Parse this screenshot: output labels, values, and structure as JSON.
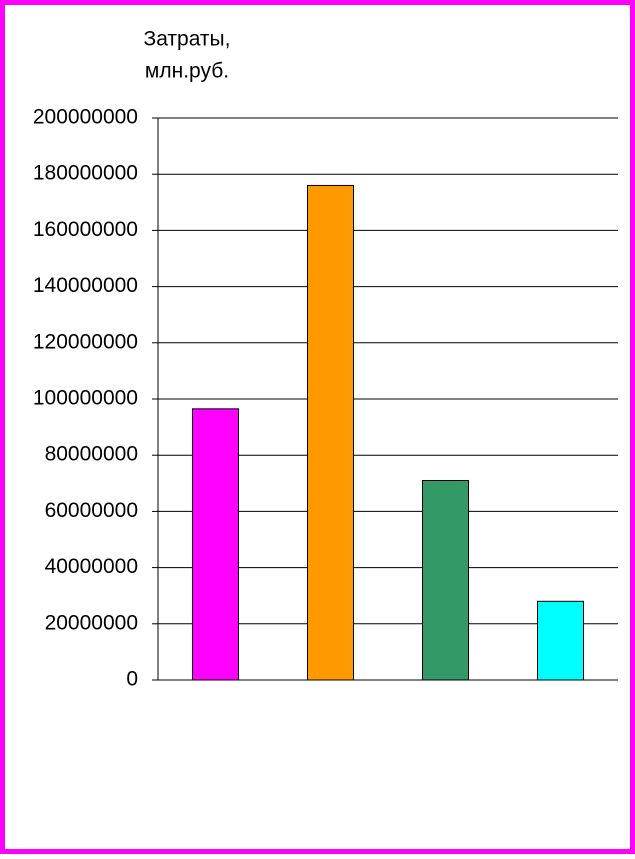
{
  "chart_data": {
    "type": "bar",
    "title": [
      "Затраты,",
      "млн.руб."
    ],
    "categories": [
      null,
      null,
      null,
      null
    ],
    "values": [
      96500000,
      176000000,
      71000000,
      28000000
    ],
    "colors": [
      "#ff00ff",
      "#ff9900",
      "#339966",
      "#00ffff"
    ],
    "ylim": [
      0,
      200000000
    ],
    "yticks": [
      0,
      20000000,
      40000000,
      60000000,
      80000000,
      100000000,
      120000000,
      140000000,
      160000000,
      180000000,
      200000000
    ],
    "grid": true
  }
}
